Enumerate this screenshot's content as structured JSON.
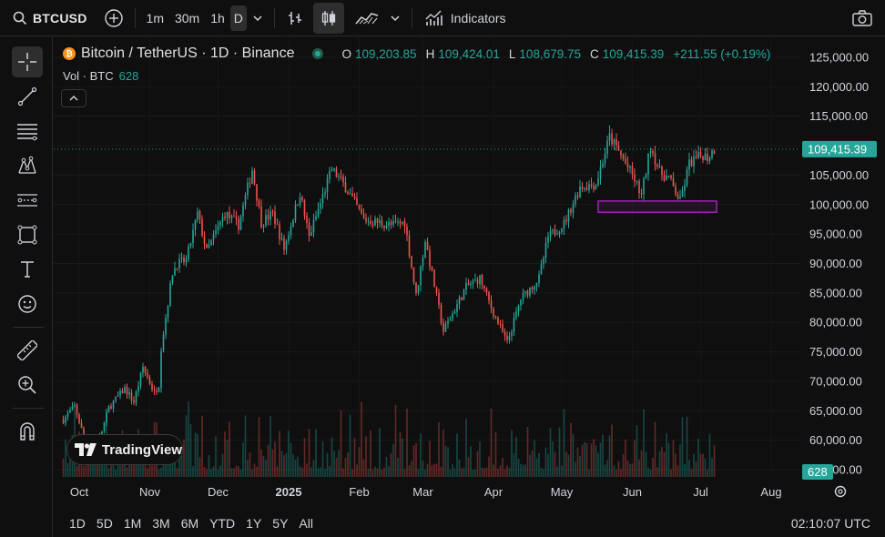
{
  "toolbar": {
    "symbol": "BTCUSD",
    "intervals": [
      "1m",
      "30m",
      "1h",
      "D"
    ],
    "active_interval": "D",
    "indicators_label": "Indicators"
  },
  "legend": {
    "title": "Bitcoin / TetherUS · 1D · Binance",
    "open_label": "O",
    "open": "109,203.85",
    "high_label": "H",
    "high": "109,424.01",
    "low_label": "L",
    "low": "108,679.75",
    "close_label": "C",
    "close": "109,415.39",
    "change": "+211.55 (+0.19%)",
    "vol_label": "Vol · BTC",
    "vol_value": "628"
  },
  "brand": "TradingView",
  "ranges": [
    "1D",
    "5D",
    "1M",
    "3M",
    "6M",
    "YTD",
    "1Y",
    "5Y",
    "All"
  ],
  "clock": "02:10:07 UTC",
  "colors": {
    "up": "#26a69a",
    "down": "#ef5350",
    "box": "#9c27b0",
    "price_tag": "#26a69a"
  },
  "chart_data": {
    "type": "candlestick",
    "y_ticks": [
      "125,000.00",
      "120,000.00",
      "115,000.00",
      "110,000.00",
      "105,000.00",
      "100,000.00",
      "95,000.00",
      "90,000.00",
      "85,000.00",
      "80,000.00",
      "75,000.00",
      "70,000.00",
      "65,000.00",
      "60,000.00",
      "55,000.00"
    ],
    "y_range": [
      55000,
      125000
    ],
    "x_ticks": [
      "Oct",
      "Nov",
      "Dec",
      "2025",
      "Feb",
      "Mar",
      "Apr",
      "May",
      "Jun",
      "Jul",
      "Aug"
    ],
    "last_price_label": "109,415.39",
    "last_price": 109415.39,
    "volume_label": "628",
    "close_anchors": [
      [
        "2024-09-24",
        63500
      ],
      [
        "2024-09-29",
        65800
      ],
      [
        "2024-10-03",
        60500
      ],
      [
        "2024-10-10",
        60300
      ],
      [
        "2024-10-14",
        65500
      ],
      [
        "2024-10-21",
        68800
      ],
      [
        "2024-10-25",
        66500
      ],
      [
        "2024-10-29",
        72400
      ],
      [
        "2024-11-03",
        68000
      ],
      [
        "2024-11-05",
        69500
      ],
      [
        "2024-11-06",
        75800
      ],
      [
        "2024-11-11",
        88500
      ],
      [
        "2024-11-13",
        90000
      ],
      [
        "2024-11-17",
        90500
      ],
      [
        "2024-11-22",
        98500
      ],
      [
        "2024-11-26",
        92000
      ],
      [
        "2024-12-04",
        98500
      ],
      [
        "2024-12-10",
        96500
      ],
      [
        "2024-12-16",
        106000
      ],
      [
        "2024-12-20",
        97000
      ],
      [
        "2024-12-25",
        98500
      ],
      [
        "2024-12-30",
        92500
      ],
      [
        "2025-01-06",
        102000
      ],
      [
        "2025-01-10",
        94500
      ],
      [
        "2025-01-20",
        106000
      ],
      [
        "2025-01-26",
        103000
      ],
      [
        "2025-02-03",
        97500
      ],
      [
        "2025-02-15",
        96500
      ],
      [
        "2025-02-21",
        97000
      ],
      [
        "2025-02-26",
        84500
      ],
      [
        "2025-03-02",
        94000
      ],
      [
        "2025-03-10",
        78500
      ],
      [
        "2025-03-20",
        86000
      ],
      [
        "2025-03-26",
        87500
      ],
      [
        "2025-03-31",
        82500
      ],
      [
        "2025-04-07",
        76500
      ],
      [
        "2025-04-13",
        84000
      ],
      [
        "2025-04-21",
        87500
      ],
      [
        "2025-04-25",
        94500
      ],
      [
        "2025-05-02",
        96800
      ],
      [
        "2025-05-09",
        103000
      ],
      [
        "2025-05-16",
        103500
      ],
      [
        "2025-05-22",
        111500
      ],
      [
        "2025-05-26",
        109000
      ],
      [
        "2025-06-01",
        105000
      ],
      [
        "2025-06-05",
        101500
      ],
      [
        "2025-06-09",
        110000
      ],
      [
        "2025-06-13",
        105500
      ],
      [
        "2025-06-17",
        104500
      ],
      [
        "2025-06-22",
        100500
      ],
      [
        "2025-06-26",
        107000
      ],
      [
        "2025-07-02",
        108500
      ],
      [
        "2025-07-04",
        108000
      ],
      [
        "2025-07-07",
        109415
      ]
    ],
    "annotation_box": {
      "x_from": "2025-05-17",
      "x_to": "2025-07-08",
      "y_from": 98700,
      "y_to": 100600
    }
  }
}
